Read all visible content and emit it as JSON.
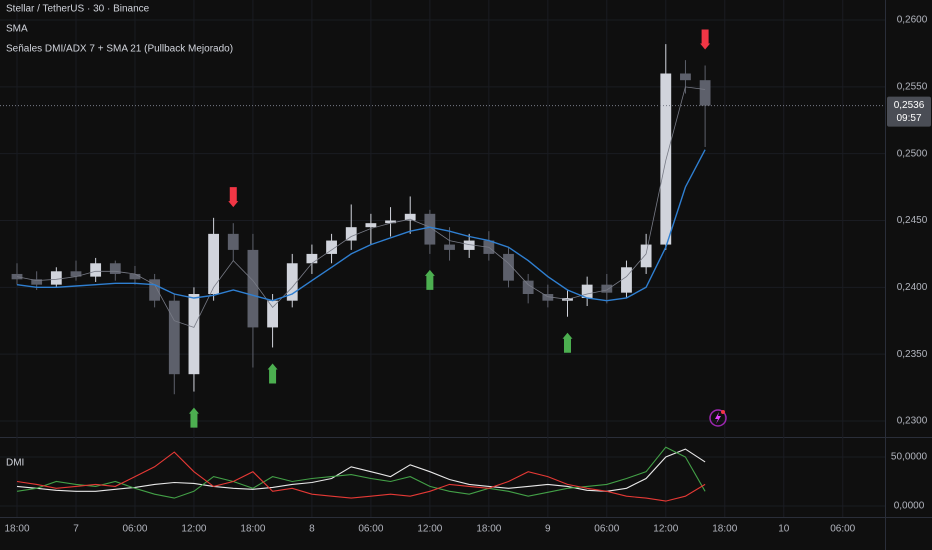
{
  "chart_data": [
    {
      "type": "candlestick",
      "title": "Stellar / TetherUS · 30 · Binance",
      "x": [
        0,
        2,
        4,
        6,
        8,
        10,
        12,
        14,
        16,
        18,
        20,
        22,
        24,
        26,
        28,
        30,
        32,
        34,
        36,
        38,
        40,
        42,
        44,
        46,
        48,
        50,
        52,
        54,
        56,
        58,
        60,
        62,
        64,
        66,
        68,
        70
      ],
      "open": [
        0.241,
        0.2406,
        0.2402,
        0.2412,
        0.2408,
        0.2418,
        0.241,
        0.2406,
        0.239,
        0.2335,
        0.2395,
        0.244,
        0.2428,
        0.237,
        0.239,
        0.2418,
        0.2425,
        0.2435,
        0.2445,
        0.2448,
        0.245,
        0.2455,
        0.2432,
        0.2428,
        0.2435,
        0.2425,
        0.2405,
        0.2395,
        0.239,
        0.2392,
        0.2402,
        0.2396,
        0.2415,
        0.2432,
        0.256,
        0.2555
      ],
      "high": [
        0.2418,
        0.2412,
        0.2415,
        0.242,
        0.2422,
        0.242,
        0.2416,
        0.241,
        0.2395,
        0.24,
        0.2452,
        0.2448,
        0.244,
        0.2395,
        0.2425,
        0.2432,
        0.244,
        0.2462,
        0.2455,
        0.246,
        0.2468,
        0.2458,
        0.2445,
        0.244,
        0.2442,
        0.243,
        0.241,
        0.2402,
        0.2398,
        0.2408,
        0.241,
        0.242,
        0.244,
        0.2582,
        0.257,
        0.2566
      ],
      "low": [
        0.2402,
        0.2398,
        0.24,
        0.2405,
        0.2404,
        0.2405,
        0.2402,
        0.2385,
        0.232,
        0.2322,
        0.239,
        0.242,
        0.234,
        0.2355,
        0.2385,
        0.241,
        0.2418,
        0.2428,
        0.2432,
        0.2438,
        0.244,
        0.2425,
        0.242,
        0.2422,
        0.242,
        0.24,
        0.2388,
        0.2385,
        0.2378,
        0.2386,
        0.2388,
        0.2392,
        0.241,
        0.2428,
        0.2545,
        0.2505
      ],
      "close": [
        0.2406,
        0.2402,
        0.2412,
        0.2408,
        0.2418,
        0.241,
        0.2406,
        0.239,
        0.2335,
        0.2395,
        0.244,
        0.2428,
        0.237,
        0.239,
        0.2418,
        0.2425,
        0.2435,
        0.2445,
        0.2448,
        0.245,
        0.2455,
        0.2432,
        0.2428,
        0.2435,
        0.2425,
        0.2405,
        0.2395,
        0.239,
        0.2392,
        0.2402,
        0.2396,
        0.2415,
        0.2432,
        0.256,
        0.2555,
        0.2536
      ],
      "up_color": "#d1d4dc",
      "down_color": "#5d606b",
      "overlays": [
        {
          "name": "SMA",
          "color": "#787b86",
          "values": [
            0.2408,
            0.2405,
            0.2406,
            0.2408,
            0.2412,
            0.2412,
            0.241,
            0.2402,
            0.2375,
            0.237,
            0.24,
            0.242,
            0.2405,
            0.2385,
            0.24,
            0.2418,
            0.2428,
            0.2438,
            0.2444,
            0.2448,
            0.2451,
            0.2445,
            0.2435,
            0.2432,
            0.243,
            0.2418,
            0.2402,
            0.2393,
            0.2391,
            0.2395,
            0.2398,
            0.2408,
            0.2425,
            0.2495,
            0.255,
            0.2548
          ]
        },
        {
          "name": "Señales DMI/ADX 7 + SMA 21 (Pullback Mejorado)",
          "color": "#2f7fd1",
          "values": [
            0.2402,
            0.24,
            0.24,
            0.2401,
            0.2402,
            0.2403,
            0.2403,
            0.2402,
            0.2395,
            0.2392,
            0.2394,
            0.2398,
            0.2394,
            0.239,
            0.2395,
            0.2405,
            0.2415,
            0.2425,
            0.2432,
            0.2437,
            0.2442,
            0.2445,
            0.2442,
            0.2438,
            0.2435,
            0.243,
            0.242,
            0.2408,
            0.2398,
            0.2392,
            0.239,
            0.2392,
            0.24,
            0.243,
            0.2475,
            0.2503
          ]
        }
      ],
      "buy_signals": [
        9,
        13,
        21,
        28
      ],
      "buy_color": "#4caf50",
      "sell_signals": [
        11,
        35
      ],
      "sell_color": "#f23645",
      "xlim": [
        -1.73,
        88.3
      ],
      "xticks": [
        {
          "value": 0,
          "label": "18:00"
        },
        {
          "value": 6,
          "label": "7"
        },
        {
          "value": 12,
          "label": "06:00"
        },
        {
          "value": 18,
          "label": "12:00"
        },
        {
          "value": 24,
          "label": "18:00"
        },
        {
          "value": 30,
          "label": "8"
        },
        {
          "value": 36,
          "label": "06:00"
        },
        {
          "value": 42,
          "label": "12:00"
        },
        {
          "value": 48,
          "label": "18:00"
        },
        {
          "value": 54,
          "label": "9"
        },
        {
          "value": 60,
          "label": "06:00"
        },
        {
          "value": 66,
          "label": "12:00"
        },
        {
          "value": 72,
          "label": "18:00"
        },
        {
          "value": 78,
          "label": "10"
        },
        {
          "value": 84,
          "label": "06:00"
        }
      ],
      "ylim": [
        0.2288,
        0.2615
      ],
      "yticks": [
        {
          "value": 0.23,
          "label": "0,2300"
        },
        {
          "value": 0.235,
          "label": "0,2350"
        },
        {
          "value": 0.24,
          "label": "0,2400"
        },
        {
          "value": 0.245,
          "label": "0,2450"
        },
        {
          "value": 0.25,
          "label": "0,2500"
        },
        {
          "value": 0.255,
          "label": "0,2550"
        },
        {
          "value": 0.26,
          "label": "0,2600"
        }
      ],
      "last_price": {
        "value": 0.2536,
        "label": "0,2536"
      },
      "countdown": "09:57"
    },
    {
      "type": "line",
      "title": "DMI",
      "x": [
        0,
        2,
        4,
        6,
        8,
        10,
        12,
        14,
        16,
        18,
        20,
        22,
        24,
        26,
        28,
        30,
        32,
        34,
        36,
        38,
        40,
        42,
        44,
        46,
        48,
        50,
        52,
        54,
        56,
        58,
        60,
        62,
        64,
        66,
        68,
        70
      ],
      "series": [
        {
          "color": "#e8e8e8",
          "values": [
            20,
            18,
            16,
            15,
            15,
            17,
            19,
            22,
            24,
            23,
            20,
            18,
            17,
            19,
            22,
            24,
            28,
            40,
            35,
            30,
            42,
            35,
            27,
            22,
            20,
            18,
            20,
            22,
            20,
            16,
            15,
            18,
            28,
            50,
            58,
            45
          ]
        },
        {
          "color": "#43a047",
          "values": [
            15,
            18,
            25,
            22,
            20,
            25,
            18,
            12,
            8,
            15,
            30,
            25,
            18,
            30,
            25,
            28,
            30,
            32,
            28,
            25,
            30,
            20,
            15,
            12,
            18,
            15,
            10,
            14,
            18,
            20,
            22,
            28,
            35,
            60,
            50,
            15
          ]
        },
        {
          "color": "#e53935",
          "values": [
            25,
            22,
            18,
            20,
            22,
            20,
            30,
            40,
            55,
            35,
            20,
            25,
            35,
            15,
            18,
            12,
            10,
            8,
            10,
            12,
            10,
            15,
            22,
            20,
            18,
            25,
            35,
            30,
            22,
            18,
            15,
            10,
            8,
            5,
            10,
            22
          ]
        }
      ],
      "xlim": [
        -1.73,
        88.3
      ],
      "ylim": [
        -9.2,
        67.3
      ],
      "yticks": [
        {
          "value": 0,
          "label": "0,0000"
        },
        {
          "value": 50,
          "label": "50,0000"
        }
      ]
    }
  ]
}
